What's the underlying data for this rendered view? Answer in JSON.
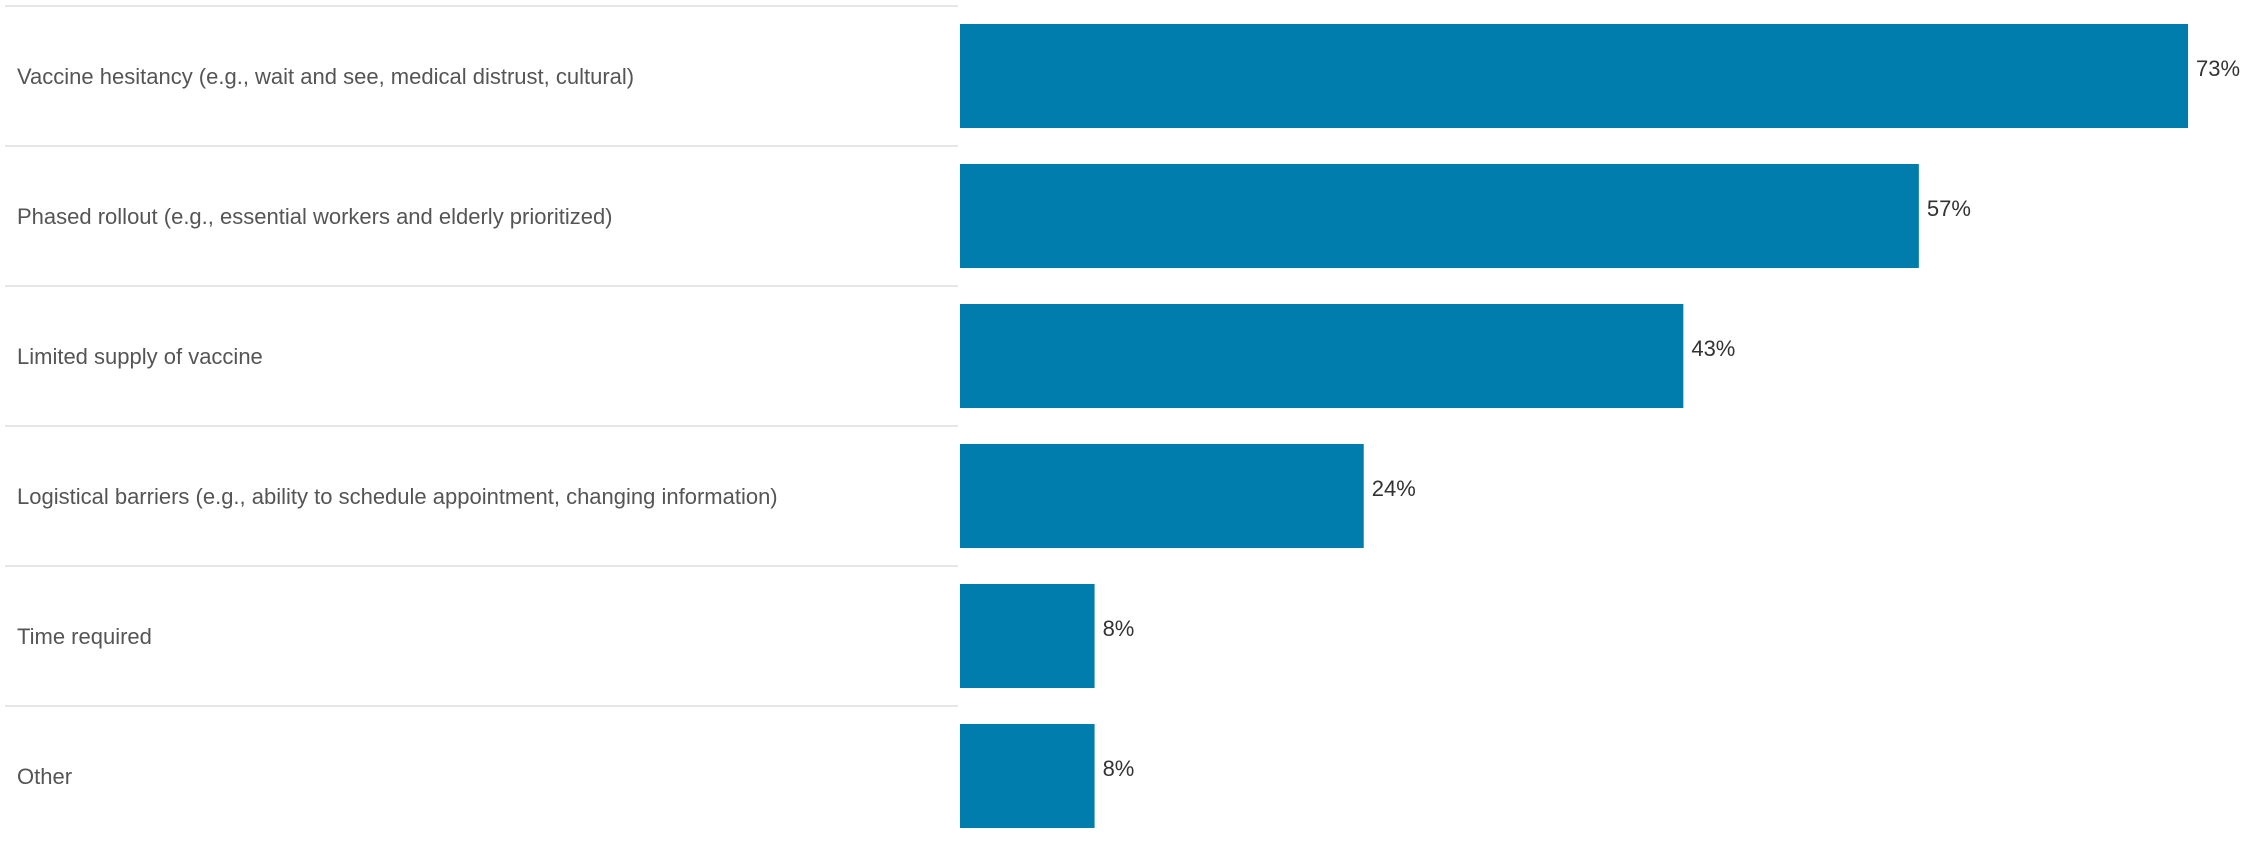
{
  "chart_data": {
    "type": "bar",
    "orientation": "horizontal",
    "title": "",
    "xlabel": "",
    "ylabel": "",
    "xlim": [
      0,
      100
    ],
    "grid": false,
    "categories": [
      "Vaccine hesitancy (e.g., wait and see, medical distrust, cultural)",
      "Phased rollout (e.g., essential workers and elderly prioritized)",
      "Limited supply of vaccine",
      "Logistical barriers (e.g.,  ability to schedule appointment, changing information)",
      "Time required",
      "Other"
    ],
    "values": [
      73,
      57,
      43,
      24,
      8,
      8
    ],
    "value_labels": [
      "73%",
      "57%",
      "43%",
      "24%",
      "8%",
      "8%"
    ],
    "bar_color": "#007dad"
  }
}
